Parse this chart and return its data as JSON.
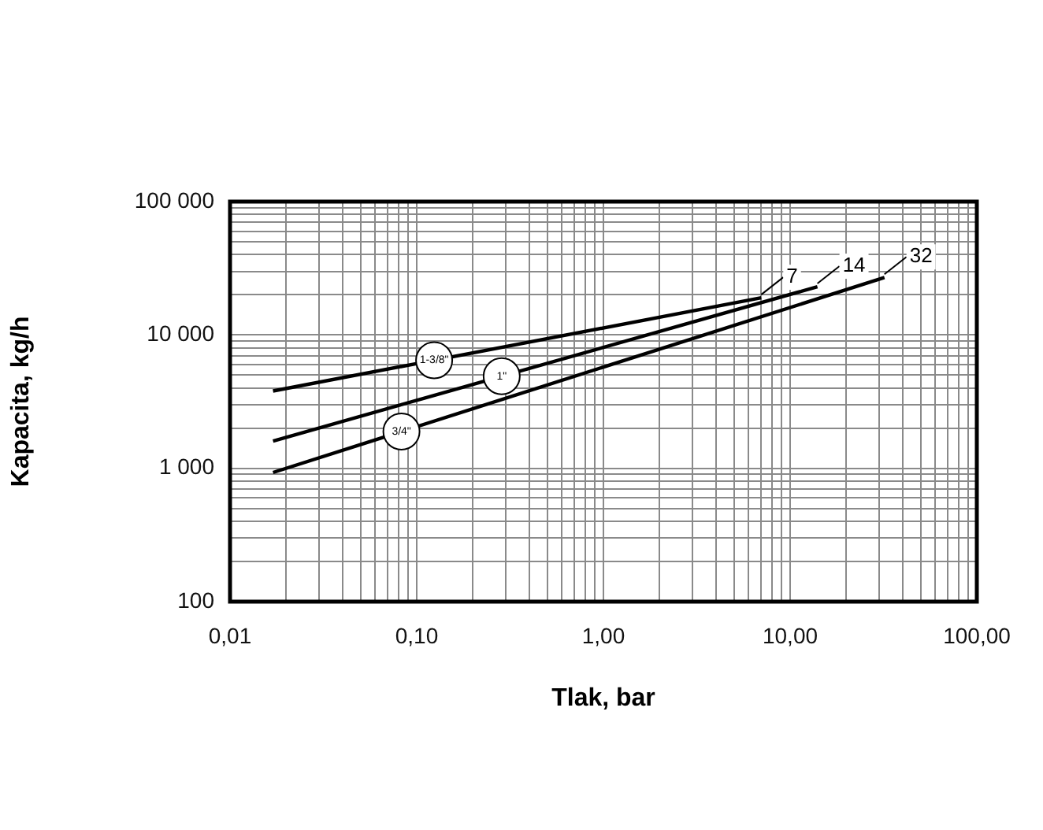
{
  "chart_data": {
    "type": "line",
    "xlabel": "Tlak, bar",
    "ylabel": "Kapacita, kg/h",
    "log": "xy",
    "grid": true,
    "legend": false,
    "marker": "none",
    "line_style": "solid",
    "xlim": [
      0.01,
      100
    ],
    "ylim": [
      100,
      100000
    ],
    "xticks": [
      {
        "value": 0.01,
        "label": "0,01"
      },
      {
        "value": 0.02,
        "label": null
      },
      {
        "value": 0.03,
        "label": null
      },
      {
        "value": 0.04,
        "label": null
      },
      {
        "value": 0.05,
        "label": null
      },
      {
        "value": 0.06,
        "label": null
      },
      {
        "value": 0.07,
        "label": null
      },
      {
        "value": 0.08,
        "label": null
      },
      {
        "value": 0.09,
        "label": null
      },
      {
        "value": 0.1,
        "label": "0,10"
      },
      {
        "value": 0.2,
        "label": null
      },
      {
        "value": 0.3,
        "label": null
      },
      {
        "value": 0.4,
        "label": null
      },
      {
        "value": 0.5,
        "label": null
      },
      {
        "value": 0.6,
        "label": null
      },
      {
        "value": 0.7,
        "label": null
      },
      {
        "value": 0.8,
        "label": null
      },
      {
        "value": 0.9,
        "label": null
      },
      {
        "value": 1,
        "label": "1,00"
      },
      {
        "value": 2,
        "label": null
      },
      {
        "value": 3,
        "label": null
      },
      {
        "value": 4,
        "label": null
      },
      {
        "value": 5,
        "label": null
      },
      {
        "value": 6,
        "label": null
      },
      {
        "value": 7,
        "label": null
      },
      {
        "value": 8,
        "label": null
      },
      {
        "value": 9,
        "label": null
      },
      {
        "value": 10,
        "label": "10,00"
      },
      {
        "value": 20,
        "label": null
      },
      {
        "value": 30,
        "label": null
      },
      {
        "value": 40,
        "label": null
      },
      {
        "value": 50,
        "label": null
      },
      {
        "value": 60,
        "label": null
      },
      {
        "value": 70,
        "label": null
      },
      {
        "value": 80,
        "label": null
      },
      {
        "value": 90,
        "label": null
      },
      {
        "value": 100,
        "label": "100,00"
      }
    ],
    "yticks": [
      100,
      {
        "value": 200,
        "label": null
      },
      {
        "value": 300,
        "label": null
      },
      {
        "value": 400,
        "label": null
      },
      {
        "value": 500,
        "label": null
      },
      {
        "value": 600,
        "label": null
      },
      {
        "value": 700,
        "label": null
      },
      {
        "value": 800,
        "label": null
      },
      {
        "value": 900,
        "label": null
      },
      {
        "value": 1000,
        "label": "1 000"
      },
      {
        "value": 2000,
        "label": null
      },
      {
        "value": 3000,
        "label": null
      },
      {
        "value": 4000,
        "label": null
      },
      {
        "value": 5000,
        "label": null
      },
      {
        "value": 6000,
        "label": null
      },
      {
        "value": 7000,
        "label": null
      },
      {
        "value": 8000,
        "label": null
      },
      {
        "value": 9000,
        "label": null
      },
      {
        "value": 10000,
        "label": "10 000"
      },
      {
        "value": 20000,
        "label": null
      },
      {
        "value": 30000,
        "label": null
      },
      {
        "value": 40000,
        "label": null
      },
      {
        "value": 50000,
        "label": null
      },
      {
        "value": 60000,
        "label": null
      },
      {
        "value": 70000,
        "label": null
      },
      {
        "value": 80000,
        "label": null
      },
      {
        "value": 90000,
        "label": null
      },
      {
        "value": 100000,
        "label": "100 000"
      }
    ],
    "series": [
      {
        "name": "1-3/8\"",
        "color": "#000000",
        "x": [
          0.017,
          7
        ],
        "values": [
          3800,
          19000
        ]
      },
      {
        "name": "1\"",
        "color": "#000000",
        "x": [
          0.017,
          14
        ],
        "values": [
          1600,
          23000
        ]
      },
      {
        "name": "3/4\"",
        "color": "#000000",
        "x": [
          0.017,
          32
        ],
        "values": [
          930,
          27000
        ]
      }
    ],
    "annotations": [
      {
        "text": "7",
        "x": 7,
        "y": 19000
      },
      {
        "text": "14",
        "x": 14,
        "y": 23000
      },
      {
        "text": "32",
        "x": 32,
        "y": 27000
      }
    ]
  }
}
